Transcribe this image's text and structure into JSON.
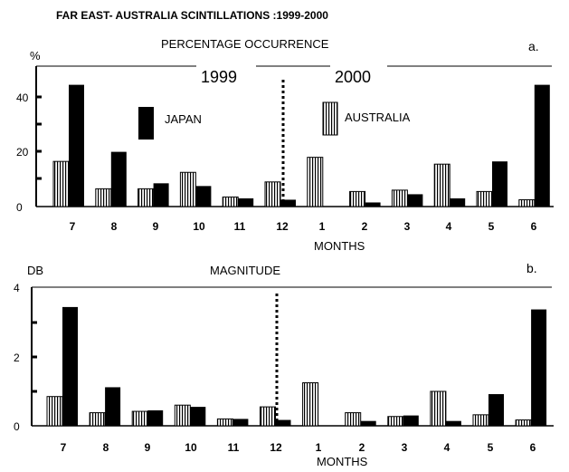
{
  "figure_title": "FAR EAST- AUSTRALIA SCINTILLATIONS :1999-2000",
  "colors": {
    "japan": "#000000",
    "australia_hatch": "#000000",
    "background": "#ffffff"
  },
  "chart_data": [
    {
      "type": "bar",
      "panel": "a.",
      "title": "PERCENTAGE OCCURRENCE",
      "ylabel": "%",
      "xlabel": "MONTHS",
      "ylim": [
        0,
        50
      ],
      "yticks": [
        "0",
        "20",
        "40"
      ],
      "year_labels": [
        "1999",
        "2000"
      ],
      "categories": [
        "7",
        "8",
        "9",
        "10",
        "11",
        "12",
        "1",
        "2",
        "3",
        "4",
        "5",
        "6"
      ],
      "series": [
        {
          "name": "AUSTRALIA",
          "pattern": "vertical-hatch",
          "values": [
            16.5,
            6.5,
            6.5,
            12.5,
            3.5,
            9,
            18,
            5.5,
            6,
            15.5,
            5.5,
            2.5
          ]
        },
        {
          "name": "JAPAN",
          "pattern": "solid",
          "values": [
            44.5,
            20,
            8.5,
            7.5,
            3,
            2.5,
            0,
            1.5,
            4.5,
            3,
            16.5,
            44.5
          ]
        }
      ],
      "legend": [
        "JAPAN",
        "AUSTRALIA"
      ]
    },
    {
      "type": "bar",
      "panel": "b.",
      "title": "MAGNITUDE",
      "ylabel": "DB",
      "xlabel": "MONTHS",
      "ylim": [
        0,
        4
      ],
      "yticks": [
        "0",
        "2",
        "4"
      ],
      "categories": [
        "7",
        "8",
        "9",
        "10",
        "11",
        "12",
        "1",
        "2",
        "3",
        "4",
        "5",
        "6"
      ],
      "series": [
        {
          "name": "AUSTRALIA",
          "pattern": "vertical-hatch",
          "values": [
            0.85,
            0.38,
            0.42,
            0.6,
            0.2,
            0.55,
            1.25,
            0.38,
            0.27,
            1.0,
            0.32,
            0.17
          ]
        },
        {
          "name": "JAPAN",
          "pattern": "solid",
          "values": [
            3.45,
            1.12,
            0.45,
            0.55,
            0.2,
            0.17,
            0,
            0.14,
            0.3,
            0.14,
            0.92,
            3.38
          ]
        }
      ]
    }
  ]
}
